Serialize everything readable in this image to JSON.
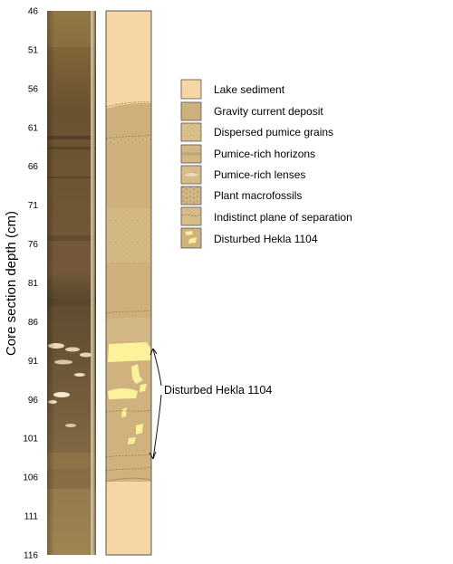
{
  "axis": {
    "title": "Core section depth (cm)",
    "range": [
      46,
      116
    ],
    "ticks": [
      "46",
      "51",
      "56",
      "61",
      "66",
      "71",
      "76",
      "81",
      "86",
      "91",
      "96",
      "101",
      "106",
      "111",
      "116"
    ]
  },
  "legend": {
    "items": [
      {
        "label": "Lake sediment",
        "pattern": "lake-sediment"
      },
      {
        "label": "Gravity current deposit",
        "pattern": "gravity-current"
      },
      {
        "label": "Dispersed pumice grains",
        "pattern": "dispersed-pumice"
      },
      {
        "label": "Pumice-rich horizons",
        "pattern": "pumice-horizons"
      },
      {
        "label": "Pumice-rich lenses",
        "pattern": "pumice-lenses"
      },
      {
        "label": "Plant macrofossils",
        "pattern": "plant-macrofossils"
      },
      {
        "label": "Indistinct plane of separation",
        "pattern": "indistinct-plane"
      },
      {
        "label": "Disturbed Hekla 1104",
        "pattern": "disturbed-hekla"
      }
    ]
  },
  "annotation": {
    "label": "Disturbed Hekla 1104",
    "top_depth": 89,
    "bottom_depth": 104
  },
  "units": [
    {
      "name": "lake-sediment",
      "from": 46,
      "to": 58.5
    },
    {
      "name": "gravity-current",
      "from": 58.5,
      "to": 86.5
    },
    {
      "name": "pumice-horizons",
      "from": 86.5,
      "to": 88
    },
    {
      "name": "disturbed-hekla",
      "from": 88,
      "to": 106
    },
    {
      "name": "lake-sediment",
      "from": 106,
      "to": 116
    }
  ],
  "colors": {
    "lake": "#F5D6A4",
    "gravity": "#CDB07A",
    "pumice_horizon": "#D2B784",
    "hekla_yellow": "#FBF29A",
    "core_dark": "#6B5430",
    "frame": "#555555"
  }
}
